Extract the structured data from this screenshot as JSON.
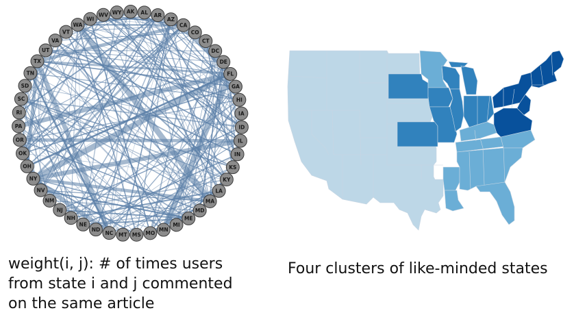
{
  "graph": {
    "nodes": [
      "WA",
      "WI",
      "WV",
      "WY",
      "AK",
      "AL",
      "AR",
      "AZ",
      "CA",
      "CO",
      "CT",
      "DC",
      "DE",
      "FL",
      "GA",
      "HI",
      "IA",
      "ID",
      "IL",
      "IN",
      "KS",
      "KY",
      "LA",
      "MA",
      "MD",
      "ME",
      "MI",
      "MN",
      "MO",
      "MS",
      "MT",
      "NC",
      "ND",
      "NE",
      "NH",
      "NJ",
      "NM",
      "NV",
      "NY",
      "OH",
      "OK",
      "OR",
      "PA",
      "RI",
      "SC",
      "SD",
      "TN",
      "TX",
      "UT",
      "VA",
      "VT"
    ],
    "strong_edges": [
      [
        "TX",
        "FL"
      ],
      [
        "TX",
        "CA"
      ],
      [
        "PA",
        "FL"
      ],
      [
        "NY",
        "FL"
      ],
      [
        "OH",
        "FL"
      ],
      [
        "NY",
        "MA"
      ],
      [
        "TX",
        "NC"
      ],
      [
        "WA",
        "MA"
      ],
      [
        "CA",
        "NY"
      ],
      [
        "OR",
        "IL"
      ],
      [
        "NY",
        "NC"
      ],
      [
        "FL",
        "MN"
      ],
      [
        "TN",
        "NC"
      ],
      [
        "TX",
        "OH"
      ],
      [
        "IL",
        "NY"
      ],
      [
        "CA",
        "FL"
      ]
    ],
    "colors": {
      "node_fill": "#8c8c8c",
      "node_stroke": "#3a3a3a",
      "edge": "#5b7fa8"
    }
  },
  "map": {
    "colors": {
      "cluster_lightest": "#bdd7e7",
      "cluster_light": "#6baed6",
      "cluster_medium": "#3182bd",
      "cluster_dark": "#08519c"
    }
  },
  "captions": {
    "left_line1": "weight(i, j):  # of times users",
    "left_line2": "from state i and j commented",
    "left_line3": "on the same article",
    "right": "Four clusters of like-minded states"
  }
}
